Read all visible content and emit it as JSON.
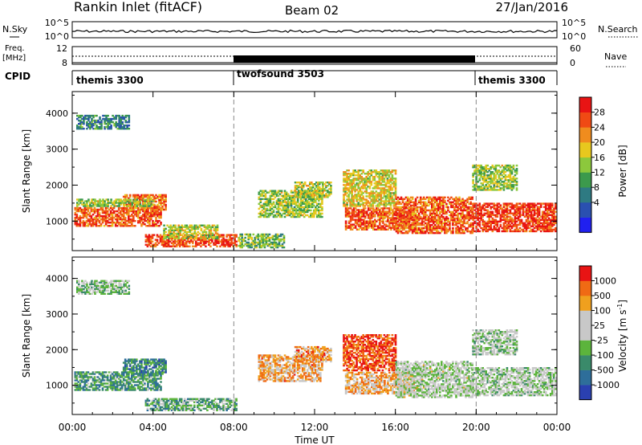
{
  "header": {
    "station": "Rankin Inlet (fitACF)",
    "beam": "Beam 02",
    "date": "27/Jan/2016"
  },
  "top_panels": {
    "nsky_label": "N.Sky",
    "nsky_ticks": [
      "10^5",
      "10^0"
    ],
    "nsearch_label": "N.Search",
    "nsearch_ticks": [
      "10^5",
      "10^0"
    ],
    "freq_label_1": "Freq.",
    "freq_label_2": "[MHz]",
    "freq_ticks": [
      "12",
      "8"
    ],
    "nave_label": "Nave",
    "nave_ticks": [
      "60",
      "0"
    ],
    "cpid_label": "CPID",
    "cpid_segments": [
      {
        "name": "themis 3300",
        "start_hour": 0
      },
      {
        "name": "twofsound 3503",
        "start_hour": 8
      },
      {
        "name": "themis 3300",
        "start_hour": 20
      }
    ]
  },
  "chart_data": [
    {
      "type": "heatmap",
      "quantity": "Power",
      "ylabel": "Slant Range [km]",
      "xlim_hours": [
        0,
        24
      ],
      "ylim": [
        180,
        4600
      ],
      "yticks": [
        "4000",
        "3000",
        "2000",
        "1000"
      ],
      "colorbar_label": "Power [dB]",
      "colorbar_ticks": [
        "28",
        "24",
        "20",
        "16",
        "12",
        "8",
        "4"
      ],
      "colors": [
        "#2020f0",
        "#2a50b0",
        "#2e7a82",
        "#3c9a4c",
        "#8cc83c",
        "#e8c81e",
        "#f08c1e",
        "#f04a14",
        "#e81414"
      ],
      "vlines_hours": [
        8,
        20
      ],
      "regions": [
        {
          "t0": 0.1,
          "t1": 4.4,
          "r0": 850,
          "r1": 1350,
          "level": 0.82
        },
        {
          "t0": 2.5,
          "t1": 4.6,
          "r0": 1300,
          "r1": 1750,
          "level": 0.75
        },
        {
          "t0": 0.2,
          "t1": 4.0,
          "r0": 1400,
          "r1": 1600,
          "level": 0.5
        },
        {
          "t0": 3.6,
          "t1": 8.1,
          "r0": 280,
          "r1": 620,
          "level": 0.85
        },
        {
          "t0": 4.5,
          "t1": 7.2,
          "r0": 500,
          "r1": 900,
          "level": 0.55
        },
        {
          "t0": 8.2,
          "t1": 10.5,
          "r0": 250,
          "r1": 650,
          "level": 0.45
        },
        {
          "t0": 9.2,
          "t1": 12.4,
          "r0": 1100,
          "r1": 1850,
          "level": 0.5
        },
        {
          "t0": 11.0,
          "t1": 12.8,
          "r0": 1650,
          "r1": 2100,
          "level": 0.55
        },
        {
          "t0": 13.4,
          "t1": 16.0,
          "r0": 1400,
          "r1": 2400,
          "level": 0.6
        },
        {
          "t0": 13.5,
          "t1": 17.0,
          "r0": 750,
          "r1": 1350,
          "level": 0.82
        },
        {
          "t0": 16.0,
          "t1": 19.8,
          "r0": 650,
          "r1": 1650,
          "level": 0.8
        },
        {
          "t0": 19.8,
          "t1": 23.9,
          "r0": 700,
          "r1": 1500,
          "level": 0.88
        },
        {
          "t0": 19.8,
          "t1": 22.0,
          "r0": 1850,
          "r1": 2550,
          "level": 0.5
        },
        {
          "t0": 0.2,
          "t1": 2.8,
          "r0": 3550,
          "r1": 3950,
          "level": 0.3
        }
      ]
    },
    {
      "type": "heatmap",
      "quantity": "Velocity",
      "ylabel": "Slant Range [km]",
      "xlabel": "Time UT",
      "xlim_hours": [
        0,
        24
      ],
      "ylim": [
        180,
        4600
      ],
      "yticks": [
        "4000",
        "3000",
        "2000",
        "1000"
      ],
      "xticks": [
        "00:00",
        "04:00",
        "08:00",
        "12:00",
        "16:00",
        "20:00",
        "00:00"
      ],
      "colorbar_label": "Velocity [m s",
      "colorbar_label_exponent": "-1",
      "colorbar_label_close": "]",
      "colorbar_ticks": [
        "1000",
        "500",
        "100",
        "25",
        "-25",
        "-100",
        "-500",
        "-1000"
      ],
      "colors": [
        "#2a40b0",
        "#2e6e9a",
        "#3a8a6a",
        "#5cb43c",
        "#c8c8c8",
        "#c8c8c8",
        "#f0a01e",
        "#f06a14",
        "#e81414"
      ],
      "vlines_hours": [
        8,
        20
      ],
      "regions": [
        {
          "t0": 0.1,
          "t1": 4.4,
          "r0": 850,
          "r1": 1350,
          "level": 0.3
        },
        {
          "t0": 2.5,
          "t1": 4.6,
          "r0": 1300,
          "r1": 1750,
          "level": 0.25
        },
        {
          "t0": 3.6,
          "t1": 8.1,
          "r0": 280,
          "r1": 620,
          "level": 0.35
        },
        {
          "t0": 9.2,
          "t1": 12.4,
          "r0": 1100,
          "r1": 1850,
          "level": 0.72
        },
        {
          "t0": 11.0,
          "t1": 12.8,
          "r0": 1650,
          "r1": 2100,
          "level": 0.75
        },
        {
          "t0": 13.4,
          "t1": 16.0,
          "r0": 1400,
          "r1": 2400,
          "level": 0.88
        },
        {
          "t0": 13.5,
          "t1": 17.0,
          "r0": 750,
          "r1": 1350,
          "level": 0.7
        },
        {
          "t0": 16.0,
          "t1": 19.8,
          "r0": 650,
          "r1": 1650,
          "level": 0.5
        },
        {
          "t0": 19.8,
          "t1": 23.9,
          "r0": 700,
          "r1": 1500,
          "level": 0.47
        },
        {
          "t0": 19.8,
          "t1": 22.0,
          "r0": 1850,
          "r1": 2550,
          "level": 0.46
        },
        {
          "t0": 0.2,
          "t1": 2.8,
          "r0": 3550,
          "r1": 3950,
          "level": 0.4
        }
      ]
    }
  ]
}
